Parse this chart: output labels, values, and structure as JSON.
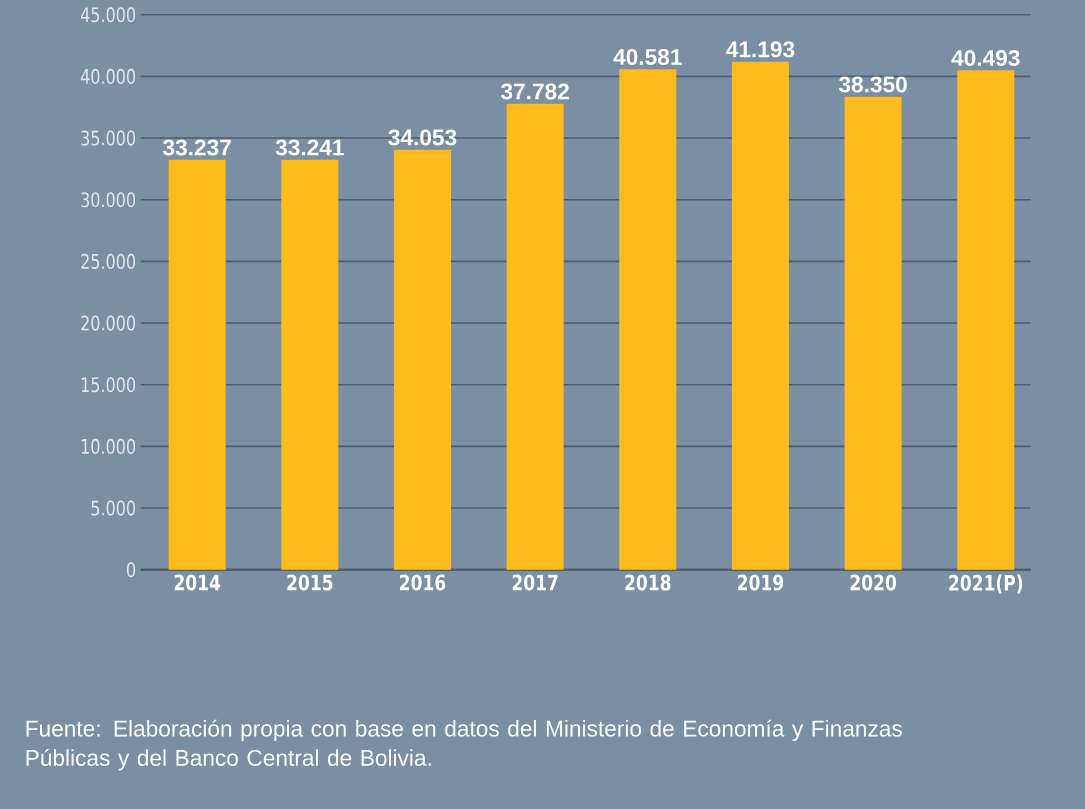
{
  "chart_data": {
    "type": "bar",
    "categories": [
      "2014",
      "2015",
      "2016",
      "2017",
      "2018",
      "2019",
      "2020",
      "2021(P)"
    ],
    "values": [
      33237,
      33241,
      34053,
      37782,
      40581,
      41193,
      38350,
      40493
    ],
    "value_labels": [
      "33.237",
      "33.241",
      "34.053",
      "37.782",
      "40.581",
      "41.193",
      "38.350",
      "40.493"
    ],
    "color": "#fdbb1c",
    "ylim": [
      0,
      45000
    ],
    "yticks": [
      {
        "value": 0,
        "label": "0"
      },
      {
        "value": 5000,
        "label": "5.000"
      },
      {
        "value": 10000,
        "label": "10.000"
      },
      {
        "value": 15000,
        "label": "15.000"
      },
      {
        "value": 20000,
        "label": "20.000"
      },
      {
        "value": 25000,
        "label": "25.000"
      },
      {
        "value": 30000,
        "label": "30.000"
      },
      {
        "value": 35000,
        "label": "35.000"
      },
      {
        "value": 40000,
        "label": "40.000"
      },
      {
        "value": 45000,
        "label": "45.000"
      }
    ],
    "grid": "y",
    "annotations": [
      "Fuente: Elaboración propia con base en datos del Ministerio de Economía y Finanzas Públicas y del Banco Central de Bolivia."
    ]
  }
}
